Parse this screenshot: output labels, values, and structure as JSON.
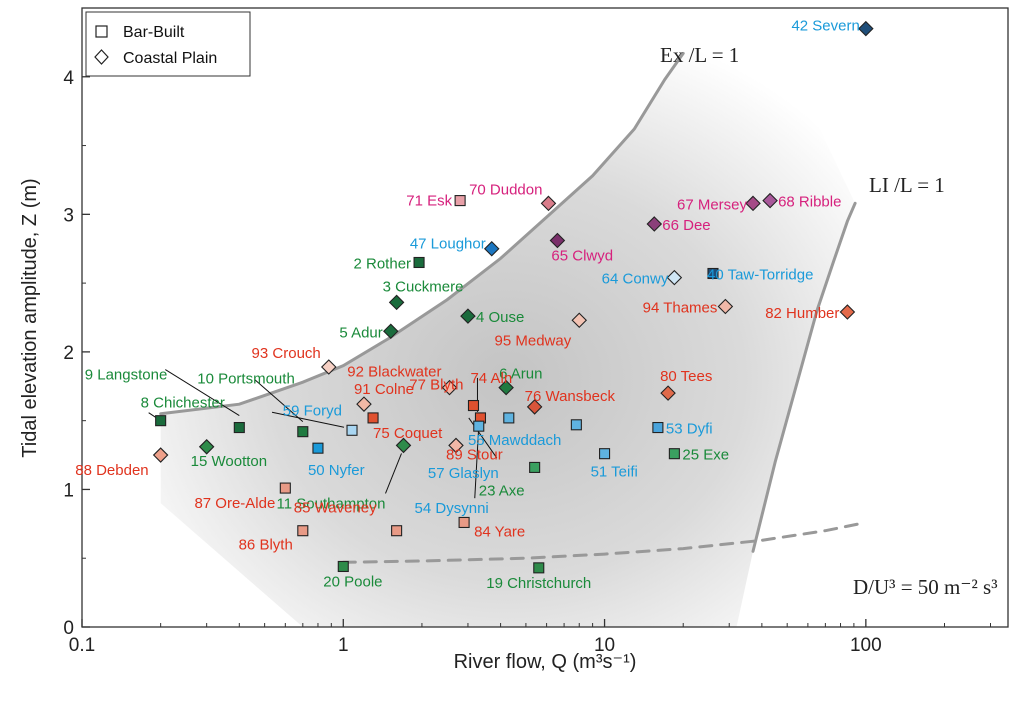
{
  "chart_data": {
    "type": "scatter",
    "title": "",
    "xlabel": "River flow, Q (m³s⁻¹)",
    "ylabel": "Tidal elevation amplitude, Z (m)",
    "xscale": "log",
    "xlim": [
      0.1,
      350
    ],
    "ylim": [
      0,
      4.5
    ],
    "x_ticks": [
      {
        "value": 0.1,
        "label": "0.1"
      },
      {
        "value": 1,
        "label": "1"
      },
      {
        "value": 10,
        "label": "10"
      },
      {
        "value": 100,
        "label": "100"
      }
    ],
    "y_ticks": [
      {
        "value": 0,
        "label": "0"
      },
      {
        "value": 1,
        "label": "1"
      },
      {
        "value": 2,
        "label": "2"
      },
      {
        "value": 3,
        "label": "3"
      },
      {
        "value": 4,
        "label": "4"
      }
    ],
    "grid": false,
    "legend": {
      "position": "top-left",
      "entries": [
        {
          "label": "Bar-Built",
          "marker": "square"
        },
        {
          "label": "Coastal Plain",
          "marker": "diamond"
        }
      ]
    },
    "label_colors": {
      "green": "#1a8a3a",
      "red": "#e0331e",
      "blue": "#1a9ad9",
      "magenta": "#d6217d"
    },
    "curves": [
      {
        "label": "Ex /L = 1",
        "style": "solid",
        "color": "#999999",
        "x": [
          0.2,
          0.4,
          0.7,
          1.0,
          1.5,
          2.5,
          4,
          6,
          9,
          13,
          17,
          20
        ],
        "y": [
          1.55,
          1.62,
          1.78,
          1.9,
          2.1,
          2.38,
          2.68,
          2.98,
          3.28,
          3.62,
          3.98,
          4.17
        ]
      },
      {
        "label": "LI /L = 1",
        "style": "solid",
        "color": "#999999",
        "x": [
          37,
          45,
          55,
          65,
          75,
          85,
          91
        ],
        "y": [
          0.55,
          1.2,
          1.8,
          2.3,
          2.65,
          2.95,
          3.08
        ]
      },
      {
        "label": "D/U³ = 50 m⁻² s³",
        "style": "dashed",
        "color": "#999999",
        "x": [
          1.0,
          2,
          5,
          10,
          20,
          40,
          70,
          100
        ],
        "y": [
          0.47,
          0.48,
          0.5,
          0.53,
          0.57,
          0.63,
          0.7,
          0.76
        ]
      }
    ],
    "points": [
      {
        "num": "42",
        "name": "Severn",
        "x": 100,
        "y": 4.35,
        "marker": "diamond",
        "fill": "#1f4e79",
        "label_color": "blue"
      },
      {
        "num": "71",
        "name": "Esk",
        "x": 2.8,
        "y": 3.1,
        "marker": "square",
        "fill": "#e8a0a8",
        "label_color": "magenta"
      },
      {
        "num": "70",
        "name": "Duddon",
        "x": 6.1,
        "y": 3.08,
        "marker": "diamond",
        "fill": "#d97c8a",
        "label_color": "magenta"
      },
      {
        "num": "67",
        "name": "Mersey",
        "x": 37,
        "y": 3.08,
        "marker": "diamond",
        "fill": "#a54b87",
        "label_color": "magenta"
      },
      {
        "num": "68",
        "name": "Ribble",
        "x": 43,
        "y": 3.1,
        "marker": "diamond",
        "fill": "#a8589a",
        "label_color": "magenta"
      },
      {
        "num": "66",
        "name": "Dee",
        "x": 15.5,
        "y": 2.93,
        "marker": "diamond",
        "fill": "#8b3f7a",
        "label_color": "magenta"
      },
      {
        "num": "65",
        "name": "Clwyd",
        "x": 6.6,
        "y": 2.81,
        "marker": "diamond",
        "fill": "#7a2f6a",
        "label_color": "magenta"
      },
      {
        "num": "47",
        "name": "Loughor",
        "x": 3.7,
        "y": 2.75,
        "marker": "diamond",
        "fill": "#1c76c0",
        "label_color": "blue"
      },
      {
        "num": "2",
        "name": "Rother",
        "x": 1.95,
        "y": 2.65,
        "marker": "square",
        "fill": "#1a6b3c",
        "label_color": "green"
      },
      {
        "num": "40",
        "name": "Taw-Torridge",
        "x": 26,
        "y": 2.57,
        "marker": "square",
        "fill": "#1f4e79",
        "label_color": "blue"
      },
      {
        "num": "64",
        "name": "Conwy",
        "x": 18.5,
        "y": 2.54,
        "marker": "diamond",
        "fill": "#cfe6f5",
        "label_color": "blue"
      },
      {
        "num": "3",
        "name": "Cuckmere",
        "x": 1.6,
        "y": 2.36,
        "marker": "diamond",
        "fill": "#1a6b3c",
        "label_color": "green"
      },
      {
        "num": "94",
        "name": "Thames",
        "x": 29,
        "y": 2.33,
        "marker": "diamond",
        "fill": "#f0b8a8",
        "label_color": "red"
      },
      {
        "num": "82",
        "name": "Humber",
        "x": 85,
        "y": 2.29,
        "marker": "diamond",
        "fill": "#e36a4a",
        "label_color": "red"
      },
      {
        "num": "4",
        "name": "Ouse",
        "x": 3.0,
        "y": 2.26,
        "marker": "diamond",
        "fill": "#1a6b3c",
        "label_color": "green"
      },
      {
        "num": "95",
        "name": "Medway",
        "x": 8.0,
        "y": 2.23,
        "marker": "diamond",
        "fill": "#f3c3b3",
        "label_color": "red"
      },
      {
        "num": "5",
        "name": "Adur",
        "x": 1.52,
        "y": 2.15,
        "marker": "diamond",
        "fill": "#1a6b3c",
        "label_color": "green"
      },
      {
        "num": "93",
        "name": "Crouch",
        "x": 0.88,
        "y": 1.89,
        "marker": "diamond",
        "fill": "#f6d0c4",
        "label_color": "red"
      },
      {
        "num": "92",
        "name": "Blackwater",
        "x": 2.55,
        "y": 1.74,
        "marker": "diamond",
        "fill": "#f1b7a6",
        "label_color": "red"
      },
      {
        "num": "6",
        "name": "Arun",
        "x": 4.2,
        "y": 1.74,
        "marker": "diamond",
        "fill": "#1f7a40",
        "label_color": "green"
      },
      {
        "num": "80",
        "name": "Tees",
        "x": 17.5,
        "y": 1.7,
        "marker": "diamond",
        "fill": "#e06a4a",
        "label_color": "red"
      },
      {
        "num": "91",
        "name": "Colne",
        "x": 1.2,
        "y": 1.62,
        "marker": "diamond",
        "fill": "#f1b8a5",
        "label_color": "red"
      },
      {
        "num": "74",
        "name": "Aln",
        "x": 3.35,
        "y": 1.52,
        "marker": "square",
        "fill": "#e0512f",
        "label_color": "red"
      },
      {
        "num": "77",
        "name": "Blyth",
        "x": 3.15,
        "y": 1.61,
        "marker": "square",
        "fill": "#e0512f",
        "label_color": "red"
      },
      {
        "num": "76",
        "name": "Wansbeck",
        "x": 5.4,
        "y": 1.6,
        "marker": "diamond",
        "fill": "#d9553a",
        "label_color": "red"
      },
      {
        "num": "75",
        "name": "Coquet",
        "x": 1.3,
        "y": 1.52,
        "marker": "square",
        "fill": "#e0512f",
        "label_color": "red"
      },
      {
        "num": "57",
        "name": "Glaslyn",
        "x": 4.3,
        "y": 1.52,
        "marker": "square",
        "fill": "#5fb3e0",
        "label_color": "blue"
      },
      {
        "num": "8",
        "name": "Chichester",
        "x": 0.2,
        "y": 1.5,
        "marker": "square",
        "fill": "#1a6b3c",
        "label_color": "green"
      },
      {
        "num": "55",
        "name": "Mawddach",
        "x": 7.8,
        "y": 1.47,
        "marker": "square",
        "fill": "#5fb3e0",
        "label_color": "blue"
      },
      {
        "num": "54",
        "name": "Dysynni",
        "x": 3.3,
        "y": 1.46,
        "marker": "square",
        "fill": "#5fb3e0",
        "label_color": "blue"
      },
      {
        "num": "53",
        "name": "Dyfi",
        "x": 16,
        "y": 1.45,
        "marker": "square",
        "fill": "#4aa4dc",
        "label_color": "blue"
      },
      {
        "num": "9",
        "name": "Langstone",
        "x": 0.4,
        "y": 1.45,
        "marker": "square",
        "fill": "#1a6b3c",
        "label_color": "green"
      },
      {
        "num": "59",
        "name": "Foryd",
        "x": 1.08,
        "y": 1.43,
        "marker": "square",
        "fill": "#a9d6f2",
        "label_color": "blue"
      },
      {
        "num": "10",
        "name": "Portsmouth",
        "x": 0.7,
        "y": 1.42,
        "marker": "square",
        "fill": "#1f7a40",
        "label_color": "green"
      },
      {
        "num": "11",
        "name": "Southampton",
        "x": 1.7,
        "y": 1.32,
        "marker": "diamond",
        "fill": "#2e8b4a",
        "label_color": "green"
      },
      {
        "num": "89",
        "name": "Stour",
        "x": 2.7,
        "y": 1.32,
        "marker": "diamond",
        "fill": "#f1b7a6",
        "label_color": "red"
      },
      {
        "num": "15",
        "name": "Wootton",
        "x": 0.3,
        "y": 1.31,
        "marker": "diamond",
        "fill": "#2e8b4a",
        "label_color": "green"
      },
      {
        "num": "50",
        "name": "Nyfer",
        "x": 0.8,
        "y": 1.3,
        "marker": "square",
        "fill": "#1a9ad9",
        "label_color": "blue"
      },
      {
        "num": "51",
        "name": "Teifi",
        "x": 10,
        "y": 1.26,
        "marker": "square",
        "fill": "#5fb3e0",
        "label_color": "blue"
      },
      {
        "num": "25",
        "name": "Exe",
        "x": 18.5,
        "y": 1.26,
        "marker": "square",
        "fill": "#3aa060",
        "label_color": "green"
      },
      {
        "num": "88",
        "name": "Debden",
        "x": 0.2,
        "y": 1.25,
        "marker": "diamond",
        "fill": "#eea08a",
        "label_color": "red"
      },
      {
        "num": "23",
        "name": "Axe",
        "x": 5.4,
        "y": 1.16,
        "marker": "square",
        "fill": "#3aa060",
        "label_color": "green"
      },
      {
        "num": "87",
        "name": "Ore-Alde",
        "x": 0.6,
        "y": 1.01,
        "marker": "square",
        "fill": "#e89a86",
        "label_color": "red"
      },
      {
        "num": "84",
        "name": "Yare",
        "x": 2.9,
        "y": 0.76,
        "marker": "square",
        "fill": "#e89a86",
        "label_color": "red"
      },
      {
        "num": "86",
        "name": "Blyth",
        "x": 0.7,
        "y": 0.7,
        "marker": "square",
        "fill": "#e89a86",
        "label_color": "red"
      },
      {
        "num": "85",
        "name": "Waveney",
        "x": 1.6,
        "y": 0.7,
        "marker": "square",
        "fill": "#e89a86",
        "label_color": "red"
      },
      {
        "num": "20",
        "name": "Poole",
        "x": 1.0,
        "y": 0.44,
        "marker": "square",
        "fill": "#2e8b4a",
        "label_color": "green"
      },
      {
        "num": "19",
        "name": "Christchurch",
        "x": 5.6,
        "y": 0.43,
        "marker": "square",
        "fill": "#2e8b4a",
        "label_color": "green"
      }
    ]
  }
}
